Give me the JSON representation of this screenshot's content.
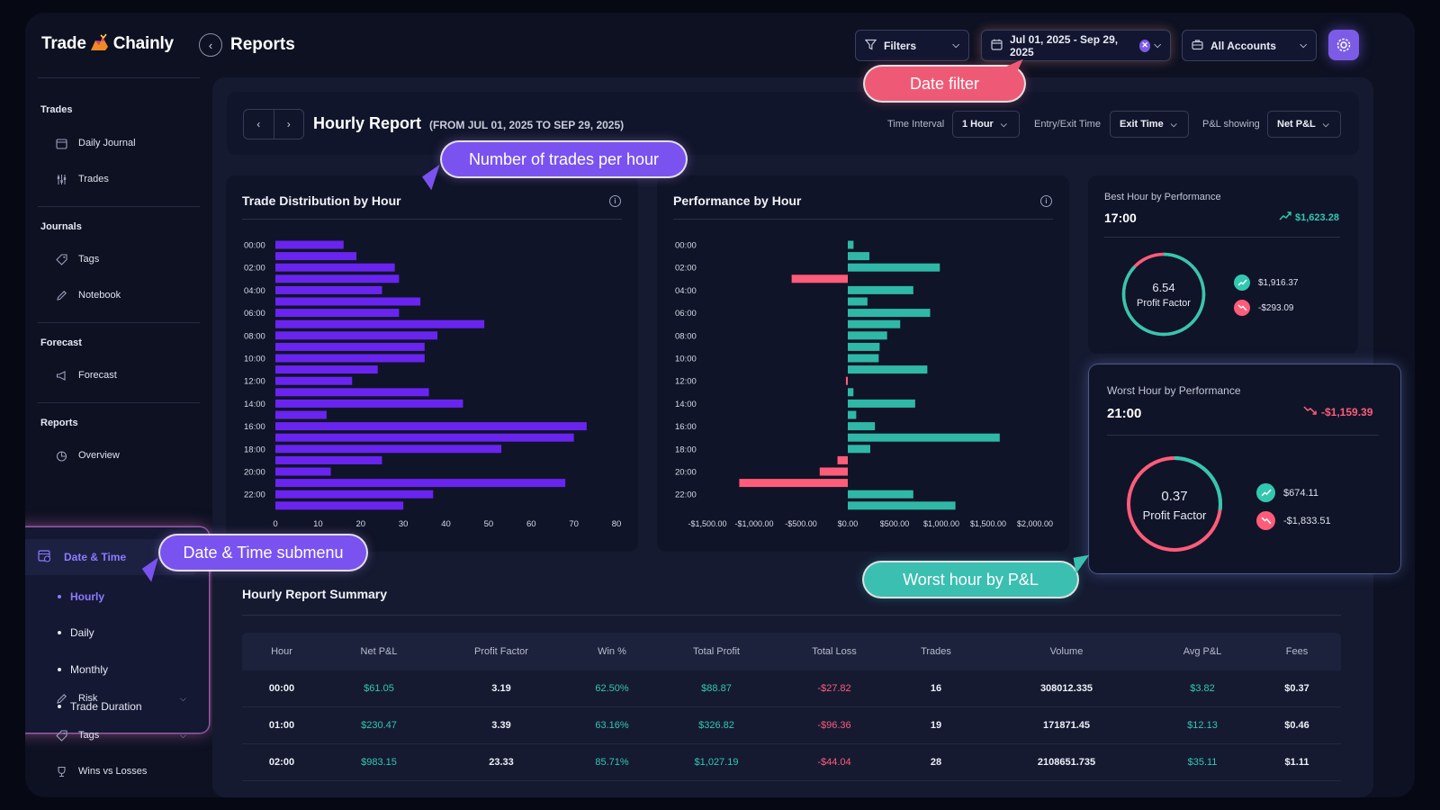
{
  "app": {
    "brand_left": "Trade",
    "brand_right": "Chainly",
    "page_title": "Reports"
  },
  "header": {
    "filters_label": "Filters",
    "date_range_label": "Jul 01, 2025 - Sep 29, 2025",
    "accounts_label": "All Accounts"
  },
  "sidebar": {
    "sections": [
      {
        "title": "Trades",
        "items": [
          "Daily Journal",
          "Trades"
        ]
      },
      {
        "title": "Journals",
        "items": [
          "Tags",
          "Notebook"
        ]
      },
      {
        "title": "Forecast",
        "items": [
          "Forecast"
        ]
      },
      {
        "title": "Reports",
        "items": [
          "Overview"
        ]
      }
    ],
    "submenu": {
      "label": "Date & Time",
      "items": [
        "Hourly",
        "Daily",
        "Monthly",
        "Trade Duration"
      ],
      "active": "Hourly"
    },
    "bottom_items": [
      "Risk",
      "Tags",
      "Wins vs Losses"
    ]
  },
  "report": {
    "title": "Hourly Report",
    "range": "(FROM JUL 01, 2025 TO SEP 29, 2025)",
    "controls": {
      "time_interval_label": "Time Interval",
      "time_interval_value": "1 Hour",
      "entry_exit_label": "Entry/Exit Time",
      "entry_exit_value": "Exit Time",
      "pl_label": "P&L showing",
      "pl_value": "Net P&L"
    }
  },
  "distribution_card": {
    "title": "Trade Distribution by Hour"
  },
  "performance_card": {
    "title": "Performance by Hour"
  },
  "chart_data": [
    {
      "type": "bar",
      "orientation": "horizontal",
      "title": "Trade Distribution by Hour",
      "categories": [
        "00:00",
        "01:00",
        "02:00",
        "03:00",
        "04:00",
        "05:00",
        "06:00",
        "07:00",
        "08:00",
        "09:00",
        "10:00",
        "11:00",
        "12:00",
        "13:00",
        "14:00",
        "15:00",
        "16:00",
        "17:00",
        "18:00",
        "19:00",
        "20:00",
        "21:00",
        "22:00",
        "23:00"
      ],
      "tick_labels": [
        "00:00",
        "02:00",
        "04:00",
        "06:00",
        "08:00",
        "10:00",
        "12:00",
        "14:00",
        "16:00",
        "18:00",
        "20:00",
        "22:00"
      ],
      "values": [
        16,
        19,
        28,
        29,
        25,
        34,
        29,
        49,
        38,
        35,
        35,
        24,
        18,
        36,
        44,
        12,
        73,
        70,
        53,
        25,
        13,
        68,
        37,
        30
      ],
      "xlim": [
        0,
        80
      ],
      "x_ticks": [
        0,
        10,
        20,
        30,
        40,
        50,
        60,
        70,
        80
      ],
      "color": "#6a24f0"
    },
    {
      "type": "bar",
      "orientation": "horizontal",
      "title": "Performance by Hour",
      "categories": [
        "00:00",
        "01:00",
        "02:00",
        "03:00",
        "04:00",
        "05:00",
        "06:00",
        "07:00",
        "08:00",
        "09:00",
        "10:00",
        "11:00",
        "12:00",
        "13:00",
        "14:00",
        "15:00",
        "16:00",
        "17:00",
        "18:00",
        "19:00",
        "20:00",
        "21:00",
        "22:00",
        "23:00"
      ],
      "tick_labels": [
        "00:00",
        "02:00",
        "04:00",
        "06:00",
        "08:00",
        "10:00",
        "12:00",
        "14:00",
        "16:00",
        "18:00",
        "20:00",
        "22:00"
      ],
      "values": [
        61.05,
        230.47,
        983.15,
        -600,
        700,
        210,
        880,
        560,
        420,
        340,
        330,
        850,
        -20,
        60,
        720,
        90,
        290,
        1623.28,
        240,
        -110,
        -300,
        -1159.39,
        700,
        1150
      ],
      "xlim": [
        -1500,
        2000
      ],
      "x_tick_labels": [
        "-$1,500.00",
        "-$1,000.00",
        "-$500.00",
        "$0.00",
        "$500.00",
        "$1,000.00",
        "$1,500.00",
        "$2,000.00"
      ],
      "positive_color": "#2fb8a6",
      "negative_color": "#ff5c7a"
    }
  ],
  "best_hour": {
    "label": "Best Hour by Performance",
    "hour": "17:00",
    "value": "$1,623.28",
    "profit_factor": "6.54",
    "profit_factor_label": "Profit Factor",
    "profit_factor_ratio": 0.87,
    "profit": "$1,916.37",
    "loss": "-$293.09"
  },
  "worst_hour": {
    "label": "Worst Hour by Performance",
    "hour": "21:00",
    "value": "-$1,159.39",
    "profit_factor": "0.37",
    "profit_factor_label": "Profit Factor",
    "profit_factor_ratio": 0.27,
    "profit": "$674.11",
    "loss": "-$1,833.51"
  },
  "summary": {
    "title": "Hourly Report Summary",
    "columns": [
      "Hour",
      "Net P&L",
      "Profit Factor",
      "Win %",
      "Total Profit",
      "Total Loss",
      "Trades",
      "Volume",
      "Avg P&L",
      "Fees"
    ],
    "rows": [
      [
        "00:00",
        "$61.05",
        "3.19",
        "62.50%",
        "$88.87",
        "-$27.82",
        "16",
        "308012.335",
        "$3.82",
        "$0.37"
      ],
      [
        "01:00",
        "$230.47",
        "3.39",
        "63.16%",
        "$326.82",
        "-$96.36",
        "19",
        "171871.45",
        "$12.13",
        "$0.46"
      ],
      [
        "02:00",
        "$983.15",
        "23.33",
        "85.71%",
        "$1,027.19",
        "-$44.04",
        "28",
        "2108651.735",
        "$35.11",
        "$1.11"
      ]
    ]
  },
  "callouts": {
    "date_filter": "Date filter",
    "trades_per_hour": "Number of trades per hour",
    "submenu": "Date & Time submenu",
    "worst_hour": "Worst hour by P&L"
  },
  "colors": {
    "accent": "#7c5ce6",
    "positive": "#33c7b0",
    "negative": "#ff5c7a",
    "bar": "#6a24f0"
  }
}
